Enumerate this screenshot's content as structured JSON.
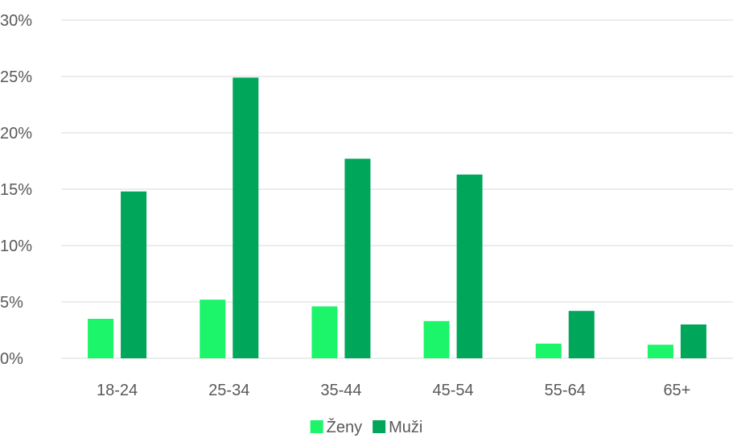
{
  "chart_data": {
    "type": "bar",
    "categories": [
      "18-24",
      "25-34",
      "35-44",
      "45-54",
      "55-64",
      "65+"
    ],
    "series": [
      {
        "name": "Ženy",
        "color": "#1CF46A",
        "values": [
          3.5,
          5.2,
          4.6,
          3.3,
          1.3,
          1.2
        ]
      },
      {
        "name": "Muži",
        "color": "#00A65A",
        "values": [
          14.8,
          24.9,
          17.7,
          16.3,
          4.2,
          3.0
        ]
      }
    ],
    "yticks": [
      "0%",
      "5%",
      "10%",
      "15%",
      "20%",
      "25%",
      "30%"
    ],
    "ylim": [
      0,
      30
    ],
    "grid": true,
    "legend_position": "bottom"
  }
}
